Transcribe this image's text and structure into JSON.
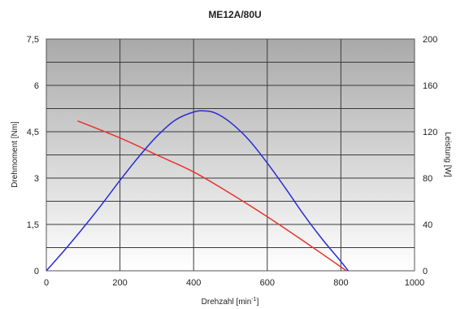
{
  "chart_data": {
    "type": "line",
    "title": "ME12A/80U",
    "xlabel": {
      "text": "Drehzahl [min",
      "sup": "-1",
      "suffix": "]"
    },
    "ylabel_left": "Drehmoment [Nm]",
    "ylabel_right": "Leistung [W]",
    "xlim": [
      0,
      1000
    ],
    "ylim_left": [
      0,
      7.5
    ],
    "ylim_right": [
      0,
      200
    ],
    "x_ticks": [
      "0",
      "200",
      "400",
      "600",
      "800",
      "1000"
    ],
    "y_left_ticks": [
      "0",
      "1,5",
      "3",
      "4,5",
      "6",
      "7,5"
    ],
    "y_right_ticks": [
      "0",
      "40",
      "80",
      "120",
      "160",
      "200"
    ],
    "grid": true,
    "background": "gradient-gray",
    "series": [
      {
        "axis": "left",
        "color": "#e8322d",
        "x": [
          85,
          200,
          300,
          400,
          500,
          600,
          700,
          815
        ],
        "y": [
          4.85,
          4.3,
          3.75,
          3.2,
          2.5,
          1.75,
          0.95,
          0.0
        ]
      },
      {
        "axis": "right",
        "color": "#2b2bd6",
        "x": [
          0,
          50,
          100,
          150,
          200,
          250,
          300,
          350,
          400,
          430,
          460,
          500,
          550,
          600,
          650,
          700,
          750,
          800,
          820
        ],
        "y": [
          0,
          18,
          37,
          57,
          78,
          98,
          116,
          130,
          137,
          138,
          136,
          128,
          113,
          93,
          71,
          48,
          27,
          8,
          0
        ]
      }
    ]
  }
}
